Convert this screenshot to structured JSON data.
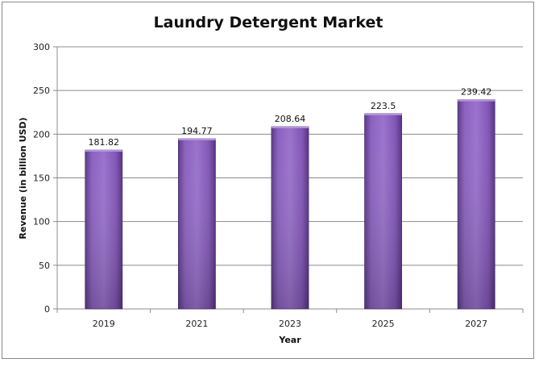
{
  "chart_data": {
    "type": "bar",
    "title": "Laundry Detergent Market",
    "xlabel": "Year",
    "ylabel": "Revenue (in billion USD)",
    "categories": [
      "2019",
      "2021",
      "2023",
      "2025",
      "2027"
    ],
    "values": [
      181.82,
      194.77,
      208.64,
      223.5,
      239.42
    ],
    "data_labels": [
      "181.82",
      "194.77",
      "208.64",
      "223.5",
      "239.42"
    ],
    "ylim": [
      0,
      300
    ],
    "yticks": [
      0,
      50,
      100,
      150,
      200,
      250,
      300
    ],
    "grid": true,
    "legend": "none",
    "bar_color": "#8a5cb8"
  }
}
